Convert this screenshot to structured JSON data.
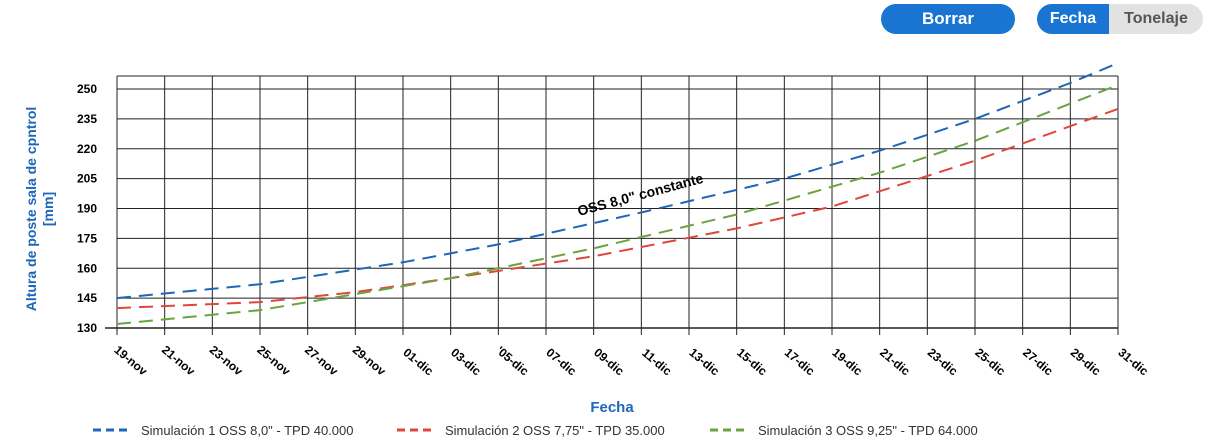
{
  "controls": {
    "clear_label": "Borrar",
    "toggle": [
      {
        "label": "Fecha",
        "active": true
      },
      {
        "label": "Tonelaje",
        "active": false
      }
    ]
  },
  "colors": {
    "accent": "#1a75d2",
    "series1": "#1d66b8",
    "series2": "#e0463c",
    "series3": "#6aa43e",
    "ylabel": "#1d66b8",
    "xlabel": "#1d66b8"
  },
  "chart_data": {
    "type": "line",
    "xlabel": "Fecha",
    "ylabel": "Altura de poste sala de cpntrol [mm]",
    "ylim": [
      130,
      250
    ],
    "yticks": [
      130,
      145,
      160,
      175,
      190,
      205,
      220,
      235,
      250
    ],
    "xlim": [
      "2023-11-19",
      "2023-12-31"
    ],
    "xtick_labels": [
      "19-nov",
      "21-nov",
      "23-nov",
      "25-nov",
      "27-nov",
      "29-nov",
      "01-dic",
      "03-dic",
      "'05-dic",
      "07-dic",
      "09-dic",
      "11-dic",
      "13-dic",
      "15-dic",
      "17-dic",
      "19-dic",
      "21-dic",
      "23-dic",
      "25-dic",
      "27-dic",
      "29-dic",
      "31-dic"
    ],
    "grid": true,
    "legend_position": "bottom",
    "annotation": "OSS 8,0\" constante",
    "series": [
      {
        "name": "Simulación 1 OSS 8,0\" - TPD 40.000",
        "color": "#1d66b8",
        "dash": true,
        "points": [
          [
            "2023-11-19",
            145
          ],
          [
            "2023-11-25",
            152
          ],
          [
            "2023-12-01",
            163
          ],
          [
            "2023-12-05",
            172
          ],
          [
            "2023-12-11",
            188
          ],
          [
            "2023-12-17",
            205
          ],
          [
            "2023-12-21",
            219
          ],
          [
            "2023-12-25",
            235
          ],
          [
            "2023-12-29",
            253
          ],
          [
            "2023-12-31",
            263
          ]
        ]
      },
      {
        "name": "Simulación 2 OSS 7,75\" - TPD 35.000",
        "color": "#e0463c",
        "dash": true,
        "points": [
          [
            "2023-11-19",
            140
          ],
          [
            "2023-11-25",
            143
          ],
          [
            "2023-11-29",
            148
          ],
          [
            "2023-12-03",
            155
          ],
          [
            "2023-12-09",
            166
          ],
          [
            "2023-12-15",
            180
          ],
          [
            "2023-12-19",
            191
          ],
          [
            "2023-12-25",
            214
          ],
          [
            "2023-12-31",
            240
          ]
        ]
      },
      {
        "name": "Simulación 3 OSS 9,25\" - TPD 64.000",
        "color": "#6aa43e",
        "dash": true,
        "points": [
          [
            "2023-11-19",
            132
          ],
          [
            "2023-11-25",
            139
          ],
          [
            "2023-11-29",
            147
          ],
          [
            "2023-12-03",
            155
          ],
          [
            "2023-12-09",
            170
          ],
          [
            "2023-12-15",
            187
          ],
          [
            "2023-12-21",
            208
          ],
          [
            "2023-12-25",
            224
          ],
          [
            "2023-12-31",
            252
          ]
        ]
      }
    ]
  }
}
